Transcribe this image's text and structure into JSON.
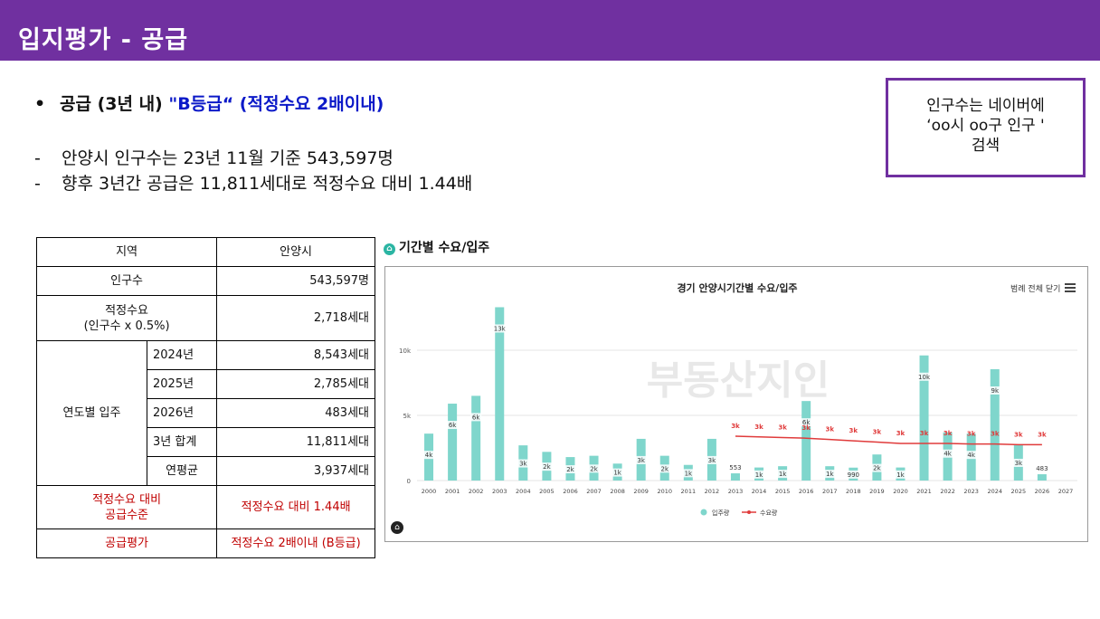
{
  "header": {
    "title": "입지평가 - 공급"
  },
  "bullet": {
    "bold_text": "공급 (3년 내) ",
    "blue_text": "\"B등급“ (적정수요 2배이내)"
  },
  "lines": [
    "안양시 인구수는 23년 11월 기준 543,597명",
    "향후 3년간 공급은 11,811세대로 적정수요 대비 1.44배"
  ],
  "dash": "-",
  "note": {
    "text": "인구수는 네이버에\n‘oo시 oo구 인구 '\n검색"
  },
  "table": {
    "region_label": "지역",
    "region_value": "안양시",
    "population_label": "인구수",
    "population_value": "543,597명",
    "demand_label": "적정수요",
    "demand_sub": "(인구수 x 0.5%)",
    "demand_value": "2,718세대",
    "yearly_label": "연도별 입주",
    "yearly": [
      {
        "year": "2024년",
        "value": "8,543세대"
      },
      {
        "year": "2025년",
        "value": "2,785세대"
      },
      {
        "year": "2026년",
        "value": "483세대"
      },
      {
        "year": "3년 합계",
        "value": "11,811세대"
      },
      {
        "year": "연평균",
        "value": "3,937세대"
      }
    ],
    "ratio_label_1": "적정수요 대비",
    "ratio_label_2": "공급수준",
    "ratio_value": "적정수요 대비 1.44배",
    "eval_label": "공급평가",
    "eval_value": "적정수요 2배이내 (B등급)"
  },
  "chart_section": {
    "caption": "기간별 수요/입주",
    "home_icon": "home-icon"
  },
  "chart_ui": {
    "legend_close": "범례 전체 닫기",
    "menu_icon": "hamburger-menu-icon",
    "logo_icon": "brand-logo-icon",
    "watermark": "부동산지인"
  },
  "chart_data": {
    "type": "bar",
    "title": "경기 안양시기간별 수요/입주",
    "x": [
      "2000",
      "2001",
      "2002",
      "2003",
      "2004",
      "2005",
      "2006",
      "2007",
      "2008",
      "2009",
      "2010",
      "2011",
      "2012",
      "2013",
      "2014",
      "2015",
      "2016",
      "2017",
      "2018",
      "2019",
      "2020",
      "2021",
      "2022",
      "2023",
      "2024",
      "2025",
      "2026",
      "2027"
    ],
    "ylim": [
      0,
      15000
    ],
    "yticks": [
      0,
      5000,
      10000
    ],
    "ytick_labels": [
      "0",
      "5k",
      "10k"
    ],
    "colors": {
      "bar": "#7fd6cc",
      "line": "#e03b3b",
      "grid": "#e6e6e6"
    },
    "series": [
      {
        "name": "입주량",
        "type": "bar",
        "values": [
          3600,
          5900,
          6500,
          13300,
          2700,
          2200,
          1800,
          1900,
          1300,
          3200,
          1900,
          1200,
          3200,
          553,
          1000,
          1100,
          6100,
          1100,
          990,
          2000,
          1000,
          9600,
          3700,
          3600,
          8543,
          2785,
          483,
          null
        ],
        "labels": [
          "4k",
          "6k",
          "6k",
          "13k",
          "3k",
          "2k",
          "2k",
          "2k",
          "1k",
          "3k",
          "2k",
          "1k",
          "3k",
          "553",
          "1k",
          "1k",
          "6k",
          "1k",
          "990",
          "2k",
          "1k",
          "10k",
          "4k",
          "4k",
          "9k",
          "3k",
          "483",
          ""
        ]
      },
      {
        "name": "수요량",
        "type": "line",
        "values": [
          null,
          null,
          null,
          null,
          null,
          null,
          null,
          null,
          null,
          null,
          null,
          null,
          null,
          3400,
          3350,
          3300,
          3250,
          3150,
          3050,
          2950,
          2850,
          2850,
          2850,
          2800,
          2800,
          2750,
          2750,
          null
        ],
        "labels": [
          "",
          "",
          "",
          "",
          "",
          "",
          "",
          "",
          "",
          "",
          "",
          "",
          "",
          "3k",
          "3k",
          "3k",
          "3k",
          "3k",
          "3k",
          "3k",
          "3k",
          "3k",
          "3k",
          "3k",
          "3k",
          "3k",
          "3k",
          ""
        ]
      }
    ]
  }
}
